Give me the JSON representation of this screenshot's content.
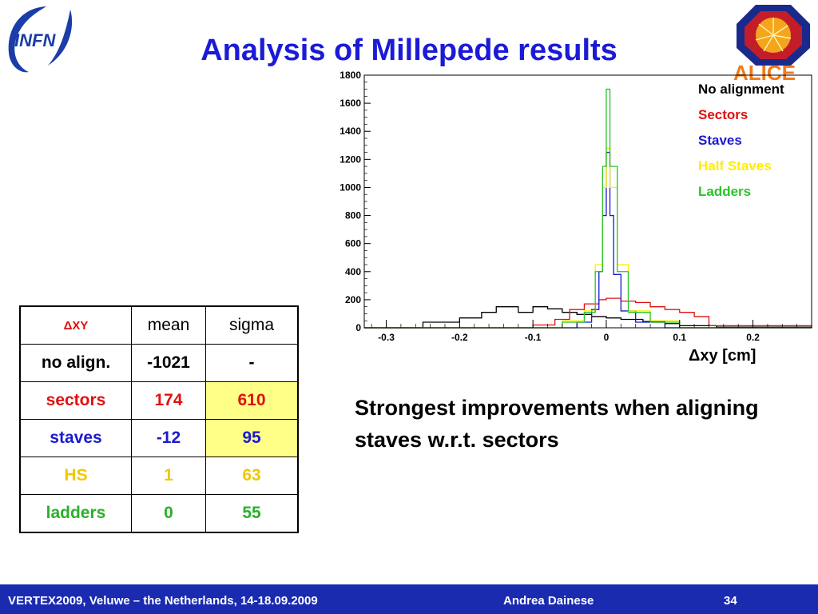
{
  "slide": {
    "title": "Analysis of Millepede results",
    "logos": {
      "left_text": "INFN",
      "right_text": "ALICE"
    },
    "statement": "Strongest improvements when aligning staves w.r.t. sectors",
    "footer": {
      "event": "VERTEX2009, Veluwe – the Netherlands, 14-18.09.2009",
      "author": "Andrea Dainese",
      "page": "34"
    }
  },
  "table": {
    "headers": [
      "ΔXY",
      "mean",
      "sigma"
    ],
    "rows": [
      {
        "label": "no align.",
        "mean": "-1021",
        "sigma": "-",
        "color": "#000000",
        "highlight": false
      },
      {
        "label": "sectors",
        "mean": "174",
        "sigma": "610",
        "color": "#e01010",
        "highlight": true
      },
      {
        "label": "staves",
        "mean": "-12",
        "sigma": "95",
        "color": "#1a1ad0",
        "highlight": true
      },
      {
        "label": "HS",
        "mean": "1",
        "sigma": "63",
        "color": "#f0c800",
        "highlight": false
      },
      {
        "label": "ladders",
        "mean": "0",
        "sigma": "55",
        "color": "#2cb02c",
        "highlight": false
      }
    ]
  },
  "chart_data": {
    "type": "line",
    "style": "step histogram",
    "xlabel": "Δxy [cm]",
    "ylabel": "",
    "xlim": [
      -0.33,
      0.28
    ],
    "ylim": [
      0,
      1800
    ],
    "x_ticks": [
      -0.3,
      -0.2,
      -0.1,
      0,
      0.1,
      0.2
    ],
    "x_tick_labels": [
      "-0.3",
      "-0.2",
      "-0.1",
      "0",
      "0.1",
      "0.2"
    ],
    "y_ticks": [
      0,
      200,
      400,
      600,
      800,
      1000,
      1200,
      1400,
      1600,
      1800
    ],
    "legend_position": "top-right",
    "series": [
      {
        "name": "No alignment",
        "color": "#000000",
        "x": [
          -0.33,
          -0.3,
          -0.25,
          -0.2,
          -0.17,
          -0.15,
          -0.12,
          -0.1,
          -0.08,
          -0.06,
          -0.04,
          -0.02,
          0,
          0.02,
          0.05,
          0.08,
          0.1,
          0.15,
          0.28
        ],
        "y": [
          0,
          0,
          40,
          70,
          110,
          150,
          110,
          150,
          135,
          110,
          95,
          80,
          70,
          60,
          45,
          30,
          15,
          5,
          0
        ]
      },
      {
        "name": "Sectors",
        "color": "#e01010",
        "x": [
          -0.33,
          -0.15,
          -0.1,
          -0.07,
          -0.05,
          -0.03,
          -0.01,
          0,
          0.02,
          0.04,
          0.06,
          0.08,
          0.1,
          0.12,
          0.14,
          0.28
        ],
        "y": [
          0,
          0,
          20,
          60,
          130,
          170,
          200,
          210,
          190,
          180,
          150,
          130,
          110,
          80,
          15,
          0
        ]
      },
      {
        "name": "Staves",
        "color": "#1a1ad0",
        "x": [
          -0.33,
          -0.08,
          -0.04,
          -0.02,
          -0.01,
          -0.005,
          0,
          0.005,
          0.01,
          0.02,
          0.04,
          0.08,
          0.28
        ],
        "y": [
          0,
          0,
          40,
          130,
          400,
          800,
          1250,
          800,
          380,
          120,
          40,
          0,
          0
        ]
      },
      {
        "name": "Half Staves",
        "color": "#ffee00",
        "x": [
          -0.33,
          -0.1,
          -0.06,
          -0.03,
          -0.015,
          -0.005,
          0,
          0.005,
          0.015,
          0.03,
          0.06,
          0.1,
          0.28
        ],
        "y": [
          0,
          0,
          50,
          120,
          450,
          1000,
          1280,
          1000,
          450,
          120,
          50,
          0,
          0
        ]
      },
      {
        "name": "Ladders",
        "color": "#2cc22c",
        "x": [
          -0.33,
          -0.1,
          -0.06,
          -0.03,
          -0.015,
          -0.005,
          0,
          0.005,
          0.015,
          0.03,
          0.06,
          0.1,
          0.28
        ],
        "y": [
          0,
          0,
          40,
          110,
          400,
          1150,
          1700,
          1150,
          400,
          110,
          40,
          0,
          0
        ]
      }
    ]
  }
}
